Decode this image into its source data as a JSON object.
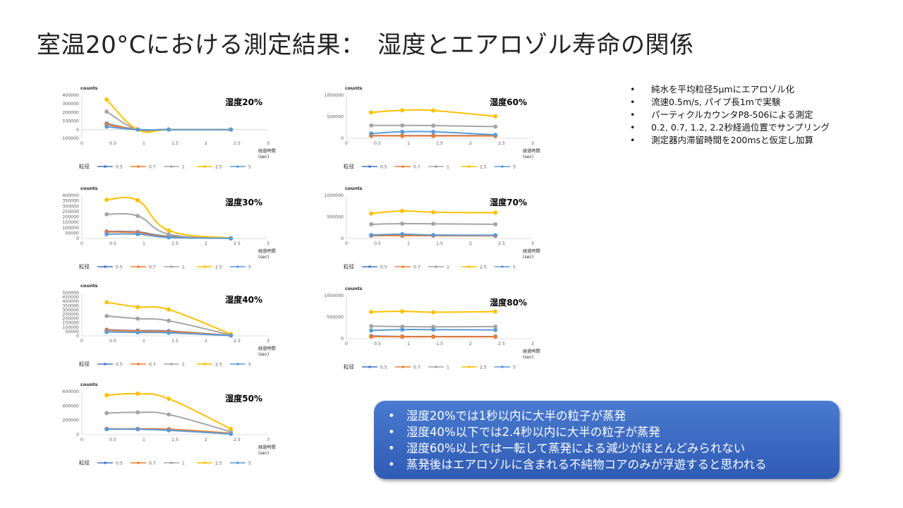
{
  "slide": {
    "title": "室温20°Cにおける測定結果：　湿度とエアロゾル寿命の関係"
  },
  "notes": [
    "純水を平均粒径5μmにエアロゾル化",
    "流速0.5m/s, パイプ長1mで実験",
    "パーティクルカウンタP8-506による測定",
    "0.2, 0.7, 1.2, 2.2秒経過位置でサンプリング",
    "測定器内滞留時間を200msと仮定し加算"
  ],
  "summary": [
    "湿度20%では1秒以内に大半の粒子が蒸発",
    "湿度40%以下では2.4秒以内に大半の粒子が蒸発",
    "湿度60%以上では一転して蒸発による減少がほとんどみられない",
    "蒸発後はエアロゾルに含まれる不純物コアのみが浮遊すると思われる"
  ],
  "legend_title": "粒径",
  "colors": {
    "0.5": "#4472c4",
    "0.7": "#ed7d31",
    "1": "#a5a5a5",
    "2.5": "#ffc000",
    "5": "#5b9bd5"
  },
  "chart_data": [
    {
      "type": "line",
      "title": "湿度20%",
      "ylabel": "counts",
      "xlabel": "経過時間(sec)",
      "xlim": [
        0,
        3
      ],
      "ylim": [
        -100000,
        400000
      ],
      "x_ticks": [
        "0",
        "0.5",
        "1",
        "1.5",
        "2",
        "2.5",
        "3"
      ],
      "y_ticks": [
        "-100000",
        "0",
        "100000",
        "200000",
        "300000",
        "400000"
      ],
      "x": [
        0.4,
        0.9,
        1.4,
        2.4
      ],
      "series": [
        {
          "name": "0.5",
          "values": [
            70000,
            3000,
            2000,
            1000
          ]
        },
        {
          "name": "0.7",
          "values": [
            60000,
            2000,
            1000,
            1000
          ]
        },
        {
          "name": "1",
          "values": [
            210000,
            2000,
            1000,
            1000
          ]
        },
        {
          "name": "2.5",
          "values": [
            350000,
            0,
            1000,
            1000
          ]
        },
        {
          "name": "5",
          "values": [
            35000,
            0,
            1000,
            1000
          ]
        }
      ]
    },
    {
      "type": "line",
      "title": "湿度30%",
      "ylabel": "counts",
      "xlabel": "経過時間(sec)",
      "xlim": [
        0,
        3
      ],
      "ylim": [
        0,
        400000
      ],
      "x_ticks": [
        "0",
        "0.5",
        "1",
        "1.5",
        "2",
        "2.5",
        "3"
      ],
      "y_ticks": [
        "0",
        "50000",
        "100000",
        "150000",
        "200000",
        "250000",
        "300000",
        "350000",
        "400000"
      ],
      "x": [
        0.4,
        0.9,
        1.4,
        2.4
      ],
      "series": [
        {
          "name": "0.5",
          "values": [
            65000,
            60000,
            20000,
            2000
          ]
        },
        {
          "name": "0.7",
          "values": [
            60000,
            55000,
            15000,
            2000
          ]
        },
        {
          "name": "1",
          "values": [
            225000,
            210000,
            40000,
            2000
          ]
        },
        {
          "name": "2.5",
          "values": [
            360000,
            355000,
            75000,
            3000
          ]
        },
        {
          "name": "5",
          "values": [
            40000,
            40000,
            10000,
            1000
          ]
        }
      ]
    },
    {
      "type": "line",
      "title": "湿度40%",
      "ylabel": "counts",
      "xlabel": "経過時間(sec)",
      "xlim": [
        0,
        3
      ],
      "ylim": [
        0,
        500000
      ],
      "x_ticks": [
        "0",
        "0.5",
        "1",
        "1.5",
        "2",
        "2.5",
        "3"
      ],
      "y_ticks": [
        "0",
        "50000",
        "100000",
        "150000",
        "200000",
        "250000",
        "300000",
        "350000",
        "400000",
        "450000",
        "500000"
      ],
      "x": [
        0.4,
        0.9,
        1.4,
        2.4
      ],
      "series": [
        {
          "name": "0.5",
          "values": [
            70000,
            60000,
            55000,
            5000
          ]
        },
        {
          "name": "0.7",
          "values": [
            65000,
            55000,
            50000,
            5000
          ]
        },
        {
          "name": "1",
          "values": [
            230000,
            200000,
            175000,
            10000
          ]
        },
        {
          "name": "2.5",
          "values": [
            390000,
            335000,
            305000,
            20000
          ]
        },
        {
          "name": "5",
          "values": [
            45000,
            40000,
            35000,
            3000
          ]
        }
      ]
    },
    {
      "type": "line",
      "title": "湿度50%",
      "ylabel": "counts",
      "xlabel": "経過時間(sec)",
      "xlim": [
        0,
        3
      ],
      "ylim": [
        0,
        600000
      ],
      "x_ticks": [
        "0",
        "0.5",
        "1",
        "1.5",
        "2",
        "2.5",
        "3"
      ],
      "y_ticks": [
        "0",
        "200000",
        "400000",
        "600000"
      ],
      "x": [
        0.4,
        0.9,
        1.4,
        2.4
      ],
      "series": [
        {
          "name": "0.5",
          "values": [
            80000,
            80000,
            70000,
            15000
          ]
        },
        {
          "name": "0.7",
          "values": [
            80000,
            80000,
            75000,
            20000
          ]
        },
        {
          "name": "1",
          "values": [
            300000,
            310000,
            280000,
            40000
          ]
        },
        {
          "name": "2.5",
          "values": [
            550000,
            570000,
            500000,
            80000
          ]
        },
        {
          "name": "5",
          "values": [
            75000,
            75000,
            60000,
            10000
          ]
        }
      ]
    },
    {
      "type": "line",
      "title": "湿度60%",
      "ylabel": "counts",
      "xlabel": "経過時間(sec)",
      "xlim": [
        0,
        3
      ],
      "ylim": [
        0,
        1000000
      ],
      "x_ticks": [
        "0",
        "0.5",
        "1",
        "1.5",
        "2",
        "2.5",
        "3"
      ],
      "y_ticks": [
        "0",
        "500000",
        "1000000"
      ],
      "x": [
        0.4,
        0.9,
        1.4,
        2.4
      ],
      "series": [
        {
          "name": "0.5",
          "values": [
            60000,
            60000,
            60000,
            60000
          ]
        },
        {
          "name": "0.7",
          "values": [
            60000,
            55000,
            55000,
            55000
          ]
        },
        {
          "name": "1",
          "values": [
            300000,
            300000,
            295000,
            270000
          ]
        },
        {
          "name": "2.5",
          "values": [
            600000,
            650000,
            645000,
            510000
          ]
        },
        {
          "name": "5",
          "values": [
            110000,
            150000,
            150000,
            80000
          ]
        }
      ]
    },
    {
      "type": "line",
      "title": "湿度70%",
      "ylabel": "counts",
      "xlabel": "経過時間(sec)",
      "xlim": [
        0,
        3
      ],
      "ylim": [
        0,
        1000000
      ],
      "x_ticks": [
        "0",
        "0.5",
        "1",
        "1.5",
        "2",
        "2.5",
        "3"
      ],
      "y_ticks": [
        "0",
        "500000",
        "1000000"
      ],
      "x": [
        0.4,
        0.9,
        1.4,
        2.4
      ],
      "series": [
        {
          "name": "0.5",
          "values": [
            70000,
            70000,
            70000,
            65000
          ]
        },
        {
          "name": "0.7",
          "values": [
            65000,
            65000,
            65000,
            60000
          ]
        },
        {
          "name": "1",
          "values": [
            330000,
            345000,
            340000,
            330000
          ]
        },
        {
          "name": "2.5",
          "values": [
            580000,
            640000,
            610000,
            600000
          ]
        },
        {
          "name": "5",
          "values": [
            80000,
            100000,
            80000,
            75000
          ]
        }
      ]
    },
    {
      "type": "line",
      "title": "湿度80%",
      "ylabel": "counts",
      "xlabel": "経過時間(sec)",
      "xlim": [
        0,
        3
      ],
      "ylim": [
        0,
        1000000
      ],
      "x_ticks": [
        "0",
        "0.5",
        "1",
        "1.5",
        "2",
        "2.5",
        "3"
      ],
      "y_ticks": [
        "0",
        "500000",
        "1000000"
      ],
      "x": [
        0.4,
        0.9,
        1.4,
        2.4
      ],
      "series": [
        {
          "name": "0.5",
          "values": [
            60000,
            50000,
            50000,
            50000
          ]
        },
        {
          "name": "0.7",
          "values": [
            50000,
            45000,
            45000,
            45000
          ]
        },
        {
          "name": "1",
          "values": [
            290000,
            280000,
            275000,
            280000
          ]
        },
        {
          "name": "2.5",
          "values": [
            620000,
            635000,
            615000,
            630000
          ]
        },
        {
          "name": "5",
          "values": [
            190000,
            210000,
            210000,
            200000
          ]
        }
      ]
    }
  ]
}
